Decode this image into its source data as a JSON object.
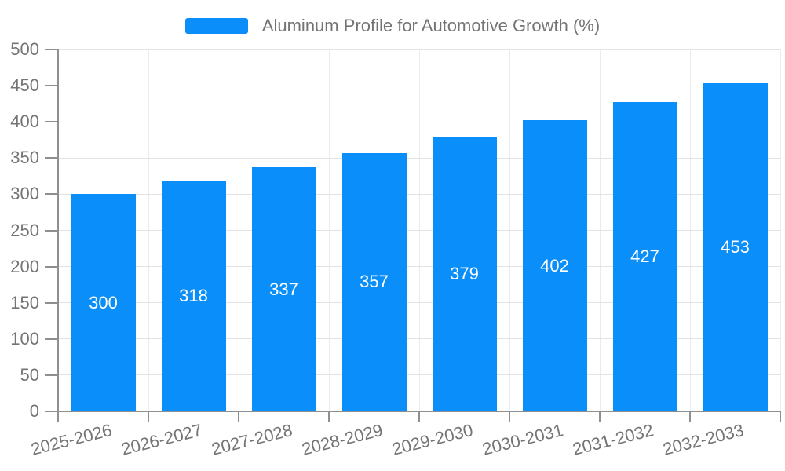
{
  "chart_data": {
    "type": "bar",
    "title": "Aluminum Profile for Automotive Growth (%)",
    "categories": [
      "2025-2026",
      "2026-2027",
      "2027-2028",
      "2028-2029",
      "2029-2030",
      "2030-2031",
      "2031-2032",
      "2032-2033"
    ],
    "series": [
      {
        "name": "Aluminum Profile for Automotive Growth (%)",
        "color": "#0a8efa",
        "values": [
          300,
          318,
          337,
          357,
          379,
          402,
          427,
          453
        ]
      }
    ],
    "bar_value_labels_visible": true,
    "xlabel": "",
    "ylabel": "",
    "ylim": [
      0,
      500
    ],
    "y_ticks": [
      0,
      50,
      100,
      150,
      200,
      250,
      300,
      350,
      400,
      450,
      500
    ],
    "grid": true,
    "legend_position": "top-center",
    "colors": {
      "bar": "#0a8efa",
      "axis": "#8f8f8f",
      "grid_horizontal": "#e3e3e3",
      "grid_vertical": "#ebebeb",
      "text": "#747474",
      "bar_label": "#ffffff",
      "background": "#ffffff"
    }
  }
}
